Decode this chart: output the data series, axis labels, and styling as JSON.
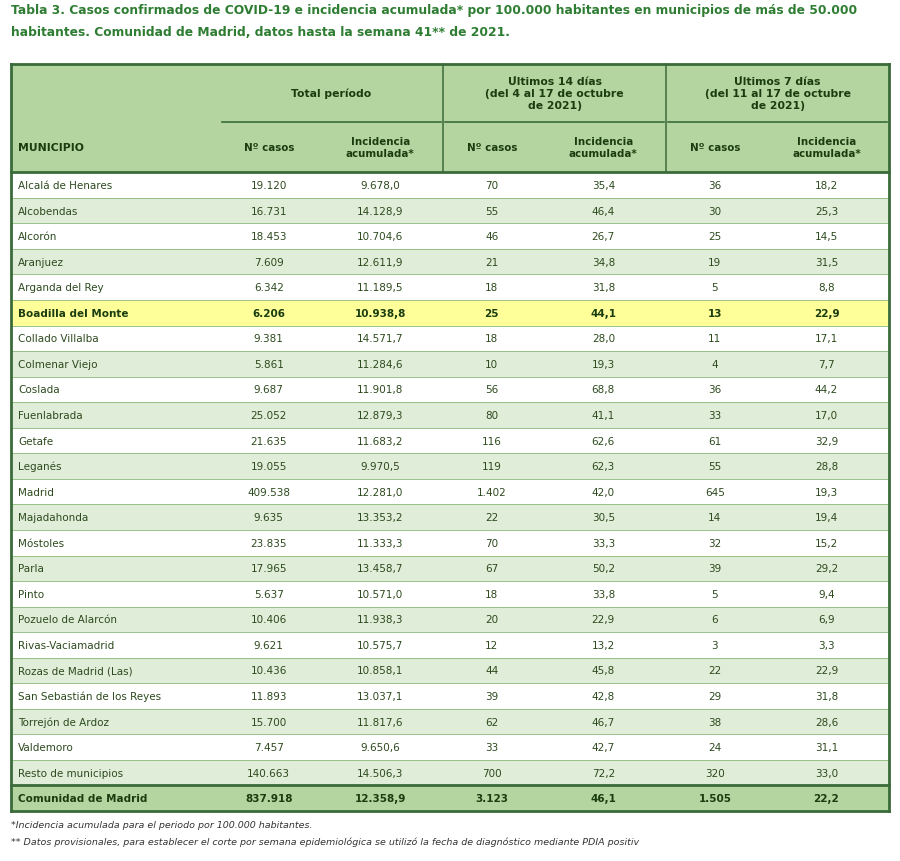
{
  "title_line1": "Tabla 3. Casos confirmados de COVID-19 e incidencia acumulada* por 100.000 habitantes en municipios de más de 50.000",
  "title_line2": "habitantes. Comunidad de Madrid, datos hasta la semana 41** de 2021.",
  "title_color": "#2e7d32",
  "header_bg": "#b5d5a0",
  "row_bg_alt1": "#ffffff",
  "row_bg_alt2": "#e0edd8",
  "highlight_row": "Boadilla del Monte",
  "highlight_color": "#ffff99",
  "footer_row_bg": "#b5d5a0",
  "col_header_bottom": [
    "MUNICIPIO",
    "Nº casos",
    "Incidencia\nacumulada*",
    "Nº casos",
    "Incidencia\nacumulada*",
    "Nº casos",
    "Incidencia\nacumulada*"
  ],
  "groups": [
    [
      1,
      2,
      "Total período"
    ],
    [
      3,
      4,
      "Últimos 14 días\n(del 4 al 17 de octubre\nde 2021)"
    ],
    [
      5,
      6,
      "Últimos 7 días\n(del 11 al 17 de octubre\nde 2021)"
    ]
  ],
  "data": [
    [
      "Alcalá de Henares",
      "19.120",
      "9.678,0",
      "70",
      "35,4",
      "36",
      "18,2"
    ],
    [
      "Alcobendas",
      "16.731",
      "14.128,9",
      "55",
      "46,4",
      "30",
      "25,3"
    ],
    [
      "Alcorón",
      "18.453",
      "10.704,6",
      "46",
      "26,7",
      "25",
      "14,5"
    ],
    [
      "Aranjuez",
      "7.609",
      "12.611,9",
      "21",
      "34,8",
      "19",
      "31,5"
    ],
    [
      "Arganda del Rey",
      "6.342",
      "11.189,5",
      "18",
      "31,8",
      "5",
      "8,8"
    ],
    [
      "Boadilla del Monte",
      "6.206",
      "10.938,8",
      "25",
      "44,1",
      "13",
      "22,9"
    ],
    [
      "Collado Villalba",
      "9.381",
      "14.571,7",
      "18",
      "28,0",
      "11",
      "17,1"
    ],
    [
      "Colmenar Viejo",
      "5.861",
      "11.284,6",
      "10",
      "19,3",
      "4",
      "7,7"
    ],
    [
      "Coslada",
      "9.687",
      "11.901,8",
      "56",
      "68,8",
      "36",
      "44,2"
    ],
    [
      "Fuenlabrada",
      "25.052",
      "12.879,3",
      "80",
      "41,1",
      "33",
      "17,0"
    ],
    [
      "Getafe",
      "21.635",
      "11.683,2",
      "116",
      "62,6",
      "61",
      "32,9"
    ],
    [
      "Leganés",
      "19.055",
      "9.970,5",
      "119",
      "62,3",
      "55",
      "28,8"
    ],
    [
      "Madrid",
      "409.538",
      "12.281,0",
      "1.402",
      "42,0",
      "645",
      "19,3"
    ],
    [
      "Majadahonda",
      "9.635",
      "13.353,2",
      "22",
      "30,5",
      "14",
      "19,4"
    ],
    [
      "Móstoles",
      "23.835",
      "11.333,3",
      "70",
      "33,3",
      "32",
      "15,2"
    ],
    [
      "Parla",
      "17.965",
      "13.458,7",
      "67",
      "50,2",
      "39",
      "29,2"
    ],
    [
      "Pinto",
      "5.637",
      "10.571,0",
      "18",
      "33,8",
      "5",
      "9,4"
    ],
    [
      "Pozuelo de Alarcón",
      "10.406",
      "11.938,3",
      "20",
      "22,9",
      "6",
      "6,9"
    ],
    [
      "Rivas-Vaciamadrid",
      "9.621",
      "10.575,7",
      "12",
      "13,2",
      "3",
      "3,3"
    ],
    [
      "Rozas de Madrid (Las)",
      "10.436",
      "10.858,1",
      "44",
      "45,8",
      "22",
      "22,9"
    ],
    [
      "San Sebastián de los Reyes",
      "11.893",
      "13.037,1",
      "39",
      "42,8",
      "29",
      "31,8"
    ],
    [
      "Torrejón de Ardoz",
      "15.700",
      "11.817,6",
      "62",
      "46,7",
      "38",
      "28,6"
    ],
    [
      "Valdemoro",
      "7.457",
      "9.650,6",
      "33",
      "42,7",
      "24",
      "31,1"
    ],
    [
      "Resto de municipios",
      "140.663",
      "14.506,3",
      "700",
      "72,2",
      "320",
      "33,0"
    ],
    [
      "Comunidad de Madrid",
      "837.918",
      "12.358,9",
      "3.123",
      "46,1",
      "1.505",
      "22,2"
    ]
  ],
  "footer_note1": "*Incidencia acumulada para el periodo por 100.000 habitantes.",
  "footer_note2": "** Datos provisionales, para establecer el corte por semana epidemiológica se utilizó la fecha de diagnóstico mediante PDIA positiv"
}
